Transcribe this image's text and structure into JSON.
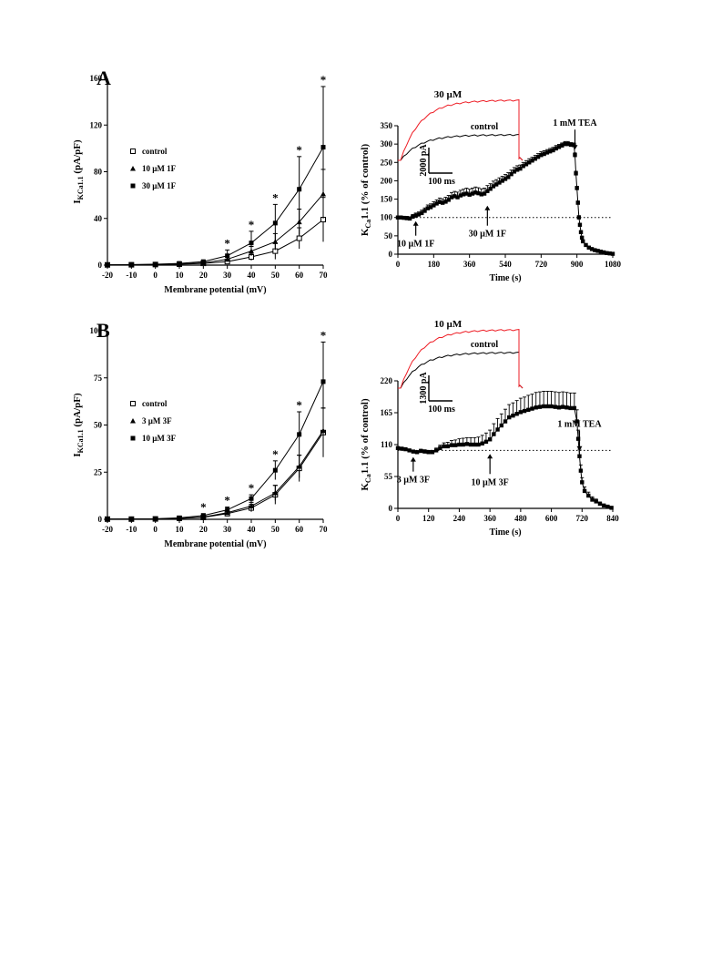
{
  "panels": [
    {
      "label": "A"
    },
    {
      "label": "B"
    }
  ],
  "chart_data": [
    {
      "type": "line",
      "panel": "A",
      "xlabel": "Membrane potential (mV)",
      "ylabel": {
        "main": "I",
        "sub": "KCa1.1",
        "tail": " (pA/pF)"
      },
      "x": [
        -20,
        -10,
        0,
        10,
        20,
        30,
        40,
        50,
        60,
        70
      ],
      "xlim": [
        -20,
        70
      ],
      "ylim": [
        0,
        160
      ],
      "yticks": [
        0,
        40,
        80,
        120,
        160
      ],
      "legend": "upper-left",
      "series": [
        {
          "name": "control",
          "marker": "open-square",
          "values": [
            0.2,
            0.3,
            0.5,
            0.8,
            1.5,
            3,
            7,
            12,
            23,
            39
          ],
          "errors": [
            0,
            0,
            0,
            0,
            0.5,
            1,
            3,
            7,
            9,
            19
          ]
        },
        {
          "name": "10 µM 1F",
          "marker": "triangle",
          "values": [
            0.2,
            0.3,
            0.6,
            1,
            2,
            5,
            12,
            20,
            37,
            61
          ],
          "errors": [
            0,
            0,
            0,
            0,
            1,
            2,
            4,
            7,
            11,
            21
          ]
        },
        {
          "name": "30 µM 1F",
          "marker": "filled-square",
          "values": [
            0.3,
            0.5,
            0.8,
            1.5,
            3,
            8,
            19,
            36,
            65,
            101
          ],
          "errors": [
            0,
            0,
            0,
            0.5,
            1,
            5,
            10,
            16,
            28,
            52
          ]
        }
      ],
      "significance": {
        "x": [
          30,
          40,
          50,
          60,
          70
        ],
        "mark": "*"
      }
    },
    {
      "type": "line",
      "panel": "A-time",
      "xlabel": "Time (s)",
      "ylabel": {
        "main": "K",
        "sub": "Ca",
        "tail": "1.1 (% of control)"
      },
      "xlim": [
        0,
        1080
      ],
      "xticks": [
        0,
        180,
        360,
        540,
        720,
        900,
        1080
      ],
      "ylim": [
        0,
        350
      ],
      "yticks": [
        0,
        50,
        100,
        150,
        200,
        250,
        300,
        350
      ],
      "baseline": 100,
      "series": [
        {
          "name": "",
          "x": [
            0,
            15,
            30,
            45,
            60,
            75,
            90,
            105,
            120,
            135,
            150,
            165,
            180,
            195,
            210,
            225,
            240,
            255,
            270,
            285,
            300,
            315,
            330,
            345,
            360,
            375,
            390,
            405,
            420,
            435,
            450,
            465,
            480,
            495,
            510,
            525,
            540,
            555,
            570,
            585,
            600,
            615,
            630,
            645,
            660,
            675,
            690,
            705,
            720,
            735,
            750,
            765,
            780,
            795,
            810,
            825,
            840,
            855,
            870,
            885,
            890,
            895,
            900,
            905,
            910,
            915,
            920,
            925,
            930,
            945,
            960,
            975,
            990,
            1005,
            1020,
            1035,
            1050,
            1065,
            1080
          ],
          "values": [
            100,
            100,
            99,
            98,
            97,
            102,
            105,
            108,
            112,
            118,
            125,
            128,
            133,
            138,
            142,
            140,
            143,
            148,
            155,
            158,
            155,
            160,
            163,
            165,
            162,
            165,
            168,
            166,
            163,
            165,
            172,
            178,
            185,
            190,
            195,
            200,
            205,
            210,
            218,
            225,
            230,
            233,
            240,
            245,
            250,
            255,
            260,
            265,
            270,
            273,
            277,
            280,
            283,
            288,
            292,
            296,
            300,
            300,
            298,
            297,
            270,
            220,
            180,
            140,
            100,
            80,
            60,
            45,
            35,
            25,
            18,
            14,
            11,
            9,
            7,
            5,
            3,
            2,
            1
          ],
          "errors": [
            4,
            4,
            4,
            5,
            5,
            6,
            7,
            7,
            8,
            8,
            9,
            9,
            10,
            10,
            11,
            11,
            12,
            12,
            13,
            13,
            14,
            14,
            14,
            15,
            15,
            15,
            15,
            15,
            15,
            15,
            15,
            14,
            14,
            13,
            13,
            12,
            12,
            12,
            11,
            11,
            11,
            10,
            10,
            10,
            10,
            9,
            9,
            9,
            9,
            9,
            8,
            8,
            8,
            8,
            7,
            7,
            7,
            7,
            6,
            6,
            6,
            6,
            5,
            5,
            5,
            4,
            4,
            3,
            3,
            3,
            2,
            2,
            2,
            2,
            1,
            1,
            1,
            1,
            1
          ]
        }
      ],
      "annotations": [
        {
          "text": "10 µM 1F",
          "x": 90
        },
        {
          "text": "30 µM 1F",
          "x": 450
        },
        {
          "text": "1 mM TEA",
          "x": 890
        }
      ],
      "inset": {
        "traces": [
          {
            "name": "30 µM",
            "color": "#ee1c24"
          },
          {
            "name": "control",
            "color": "#000000"
          }
        ],
        "scalebar": {
          "y": "2000 pA",
          "x": "100 ms"
        }
      }
    },
    {
      "type": "line",
      "panel": "B",
      "xlabel": "Membrane potential (mV)",
      "ylabel": {
        "main": "I",
        "sub": "KCa1.1",
        "tail": " (pA/pF)"
      },
      "x": [
        -20,
        -10,
        0,
        10,
        20,
        30,
        40,
        50,
        60,
        70
      ],
      "xlim": [
        -20,
        70
      ],
      "ylim": [
        0,
        100
      ],
      "yticks": [
        0,
        25,
        50,
        75,
        100
      ],
      "legend": "upper-left",
      "series": [
        {
          "name": "control",
          "marker": "open-square",
          "values": [
            0.1,
            0.1,
            0.2,
            0.5,
            1,
            3,
            6,
            13,
            27,
            46
          ],
          "errors": [
            0,
            0,
            0,
            0,
            0.5,
            1,
            2,
            5,
            7,
            13
          ]
        },
        {
          "name": "3 µM 3F",
          "marker": "triangle",
          "values": [
            0.1,
            0.1,
            0.2,
            0.5,
            1.2,
            3.5,
            7,
            14,
            28,
            47
          ],
          "errors": [
            0,
            0,
            0,
            0,
            0.5,
            1,
            2,
            4,
            6,
            12
          ]
        },
        {
          "name": "10 µM 3F",
          "marker": "filled-square",
          "values": [
            0.1,
            0.2,
            0.3,
            0.8,
            2,
            5,
            11,
            26,
            45,
            73
          ],
          "errors": [
            0,
            0,
            0,
            0.3,
            1,
            1.5,
            2,
            5,
            12,
            21
          ]
        }
      ],
      "significance": {
        "x": [
          20,
          30,
          40,
          50,
          60,
          70
        ],
        "mark": "*"
      }
    },
    {
      "type": "line",
      "panel": "B-time",
      "xlabel": "Time (s)",
      "ylabel": {
        "main": "K",
        "sub": "Ca",
        "tail": "1.1 (% of control)"
      },
      "xlim": [
        0,
        840
      ],
      "xticks": [
        0,
        120,
        240,
        360,
        480,
        600,
        720,
        840
      ],
      "ylim": [
        0,
        220
      ],
      "yticks": [
        0,
        55,
        110,
        165,
        220
      ],
      "baseline": 100,
      "series": [
        {
          "name": "",
          "x": [
            0,
            15,
            30,
            45,
            60,
            75,
            90,
            105,
            120,
            135,
            150,
            165,
            180,
            195,
            210,
            225,
            240,
            255,
            270,
            285,
            300,
            315,
            330,
            345,
            360,
            375,
            390,
            405,
            420,
            435,
            450,
            465,
            480,
            495,
            510,
            525,
            540,
            555,
            570,
            585,
            600,
            615,
            630,
            645,
            660,
            675,
            690,
            700,
            705,
            710,
            715,
            720,
            730,
            745,
            760,
            775,
            790,
            805,
            820,
            835
          ],
          "values": [
            104,
            103,
            102,
            100,
            98,
            97,
            99,
            98,
            97,
            97,
            100,
            104,
            107,
            107,
            109,
            109,
            110,
            110,
            111,
            110,
            110,
            110,
            112,
            115,
            119,
            128,
            136,
            143,
            150,
            157,
            160,
            163,
            166,
            168,
            170,
            172,
            174,
            175,
            176,
            176,
            176,
            175,
            174,
            175,
            174,
            173,
            173,
            150,
            120,
            90,
            65,
            45,
            30,
            22,
            15,
            12,
            8,
            5,
            3,
            1
          ],
          "errors": [
            2,
            2,
            2,
            2,
            2,
            2,
            3,
            3,
            3,
            3,
            4,
            5,
            6,
            7,
            8,
            9,
            10,
            11,
            11,
            12,
            12,
            13,
            14,
            15,
            16,
            18,
            19,
            20,
            21,
            22,
            22,
            23,
            24,
            24,
            25,
            25,
            26,
            26,
            26,
            26,
            26,
            26,
            26,
            26,
            26,
            26,
            26,
            20,
            15,
            12,
            10,
            8,
            7,
            6,
            5,
            4,
            3,
            2,
            1,
            1
          ]
        }
      ],
      "annotations": [
        {
          "text": "3 µM 3F",
          "x": 60
        },
        {
          "text": "10 µM 3F",
          "x": 360
        },
        {
          "text": "1 mM TEA",
          "x": 710
        }
      ],
      "inset": {
        "traces": [
          {
            "name": "10 µM",
            "color": "#ee1c24"
          },
          {
            "name": "control",
            "color": "#000000"
          }
        ],
        "scalebar": {
          "y": "1300 pA",
          "x": "100 ms"
        }
      }
    }
  ]
}
